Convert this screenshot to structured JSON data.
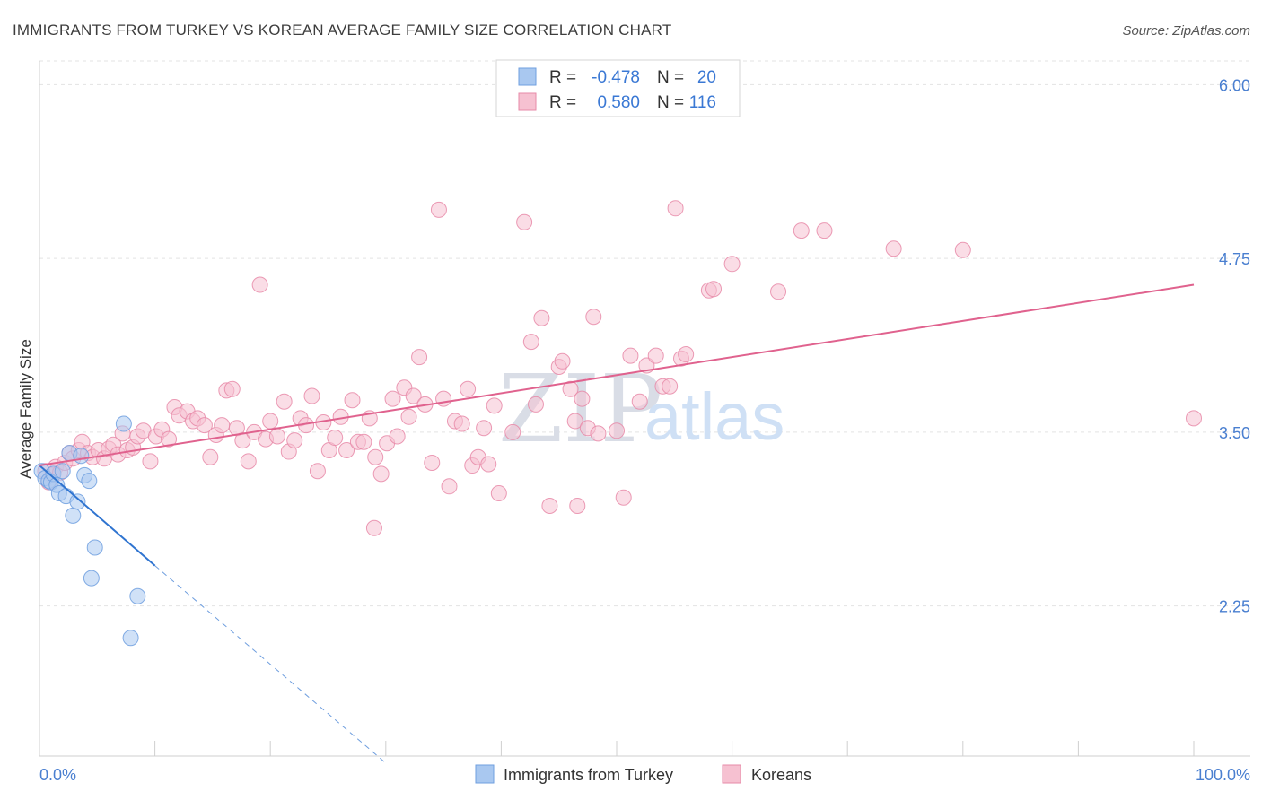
{
  "chart_data": {
    "type": "scatter",
    "title": "IMMIGRANTS FROM TURKEY VS KOREAN AVERAGE FAMILY SIZE CORRELATION CHART",
    "source": "Source: ZipAtlas.com",
    "ylabel": "Average Family Size",
    "xlim": [
      0,
      100
    ],
    "ylim": [
      1.17,
      6.17
    ],
    "x_tick_labels": {
      "left": "0.0%",
      "right": "100.0%"
    },
    "y_ticks": [
      {
        "value": 2.25,
        "label": "2.25"
      },
      {
        "value": 3.5,
        "label": "3.50"
      },
      {
        "value": 4.75,
        "label": "4.75"
      },
      {
        "value": 6.0,
        "label": "6.00"
      }
    ],
    "watermark": {
      "zip": "ZIP",
      "atlas": "atlas"
    },
    "legend": {
      "rows": [
        {
          "r_label": "R =",
          "r_value": "-0.478",
          "n_label": "N =",
          "n_value": "20"
        },
        {
          "r_label": "R =",
          "r_value": "0.580",
          "n_label": "N =",
          "n_value": "116"
        }
      ]
    },
    "series": [
      {
        "name": "Immigrants from Turkey",
        "color": "#a9c8f0",
        "stroke": "#6f9fdf",
        "trend_color": "#2f74d0",
        "trend": {
          "x0": 0,
          "y0": 3.26,
          "x1": 10,
          "y1": 2.54,
          "dash_to_x": 30,
          "dash_to_y": 1.12
        },
        "points": [
          [
            0.2,
            3.22
          ],
          [
            0.5,
            3.17
          ],
          [
            0.8,
            3.15
          ],
          [
            1.0,
            3.14
          ],
          [
            1.2,
            3.2
          ],
          [
            1.5,
            3.12
          ],
          [
            1.7,
            3.06
          ],
          [
            2.0,
            3.22
          ],
          [
            2.3,
            3.04
          ],
          [
            2.6,
            3.35
          ],
          [
            2.9,
            2.9
          ],
          [
            3.3,
            3.0
          ],
          [
            3.6,
            3.33
          ],
          [
            3.9,
            3.19
          ],
          [
            4.3,
            3.15
          ],
          [
            4.8,
            2.67
          ],
          [
            4.5,
            2.45
          ],
          [
            7.3,
            3.56
          ],
          [
            8.5,
            2.32
          ],
          [
            7.9,
            2.02
          ]
        ]
      },
      {
        "name": "Koreans",
        "color": "#f6c1d1",
        "stroke": "#e78aa8",
        "trend_color": "#e0628e",
        "trend": {
          "x0": 0,
          "y0": 3.26,
          "x1": 100,
          "y1": 4.56
        },
        "points": [
          [
            0.5,
            3.22
          ],
          [
            0.8,
            3.14
          ],
          [
            1.1,
            3.19
          ],
          [
            1.4,
            3.25
          ],
          [
            1.8,
            3.21
          ],
          [
            2.2,
            3.28
          ],
          [
            2.6,
            3.35
          ],
          [
            2.9,
            3.31
          ],
          [
            3.4,
            3.37
          ],
          [
            3.7,
            3.43
          ],
          [
            4.2,
            3.35
          ],
          [
            4.6,
            3.32
          ],
          [
            5.1,
            3.37
          ],
          [
            5.6,
            3.31
          ],
          [
            6.0,
            3.38
          ],
          [
            6.4,
            3.41
          ],
          [
            6.8,
            3.34
          ],
          [
            7.2,
            3.49
          ],
          [
            7.6,
            3.37
          ],
          [
            8.1,
            3.39
          ],
          [
            8.5,
            3.47
          ],
          [
            9.0,
            3.51
          ],
          [
            9.6,
            3.29
          ],
          [
            10.1,
            3.47
          ],
          [
            10.6,
            3.52
          ],
          [
            11.2,
            3.45
          ],
          [
            11.7,
            3.68
          ],
          [
            12.1,
            3.62
          ],
          [
            12.8,
            3.65
          ],
          [
            13.3,
            3.58
          ],
          [
            13.7,
            3.6
          ],
          [
            14.3,
            3.55
          ],
          [
            14.8,
            3.32
          ],
          [
            15.3,
            3.48
          ],
          [
            15.8,
            3.55
          ],
          [
            16.2,
            3.8
          ],
          [
            16.7,
            3.81
          ],
          [
            17.1,
            3.53
          ],
          [
            17.6,
            3.44
          ],
          [
            18.1,
            3.29
          ],
          [
            18.6,
            3.5
          ],
          [
            19.1,
            4.56
          ],
          [
            19.6,
            3.45
          ],
          [
            20.0,
            3.58
          ],
          [
            20.6,
            3.47
          ],
          [
            21.2,
            3.72
          ],
          [
            21.6,
            3.36
          ],
          [
            22.1,
            3.44
          ],
          [
            22.6,
            3.6
          ],
          [
            23.1,
            3.55
          ],
          [
            23.6,
            3.76
          ],
          [
            24.1,
            3.22
          ],
          [
            24.6,
            3.57
          ],
          [
            25.1,
            3.37
          ],
          [
            25.6,
            3.46
          ],
          [
            26.1,
            3.61
          ],
          [
            26.6,
            3.37
          ],
          [
            27.1,
            3.73
          ],
          [
            27.6,
            3.43
          ],
          [
            28.1,
            3.43
          ],
          [
            28.6,
            3.6
          ],
          [
            29.1,
            3.32
          ],
          [
            29.6,
            3.2
          ],
          [
            30.1,
            3.42
          ],
          [
            30.6,
            3.74
          ],
          [
            31.0,
            3.47
          ],
          [
            31.6,
            3.82
          ],
          [
            32.0,
            3.61
          ],
          [
            32.4,
            3.76
          ],
          [
            32.9,
            4.04
          ],
          [
            33.4,
            3.7
          ],
          [
            34.0,
            3.28
          ],
          [
            34.6,
            5.1
          ],
          [
            35.0,
            3.74
          ],
          [
            35.5,
            3.11
          ],
          [
            36.0,
            3.58
          ],
          [
            36.6,
            3.56
          ],
          [
            37.1,
            3.81
          ],
          [
            37.5,
            3.26
          ],
          [
            38.0,
            3.32
          ],
          [
            38.5,
            3.53
          ],
          [
            38.9,
            3.27
          ],
          [
            39.4,
            3.69
          ],
          [
            39.8,
            3.06
          ],
          [
            41.0,
            3.5
          ],
          [
            42.0,
            5.01
          ],
          [
            42.6,
            4.15
          ],
          [
            43.0,
            3.7
          ],
          [
            43.5,
            4.32
          ],
          [
            44.2,
            2.97
          ],
          [
            45.0,
            3.97
          ],
          [
            45.3,
            4.01
          ],
          [
            46.0,
            3.81
          ],
          [
            46.4,
            3.58
          ],
          [
            46.6,
            2.97
          ],
          [
            47.0,
            3.74
          ],
          [
            47.5,
            3.53
          ],
          [
            48.0,
            4.33
          ],
          [
            48.4,
            3.49
          ],
          [
            50.0,
            3.51
          ],
          [
            50.6,
            3.03
          ],
          [
            51.2,
            4.05
          ],
          [
            52.0,
            3.72
          ],
          [
            52.6,
            3.98
          ],
          [
            53.4,
            4.05
          ],
          [
            54.0,
            3.83
          ],
          [
            54.6,
            3.83
          ],
          [
            55.1,
            5.11
          ],
          [
            55.6,
            4.03
          ],
          [
            56.0,
            4.06
          ],
          [
            58.0,
            4.52
          ],
          [
            58.4,
            4.53
          ],
          [
            60.0,
            4.71
          ],
          [
            64.0,
            4.51
          ],
          [
            66.0,
            4.95
          ],
          [
            68.0,
            4.95
          ],
          [
            74.0,
            4.82
          ],
          [
            80.0,
            4.81
          ],
          [
            100.0,
            3.6
          ],
          [
            29.0,
            2.81
          ]
        ]
      }
    ]
  }
}
